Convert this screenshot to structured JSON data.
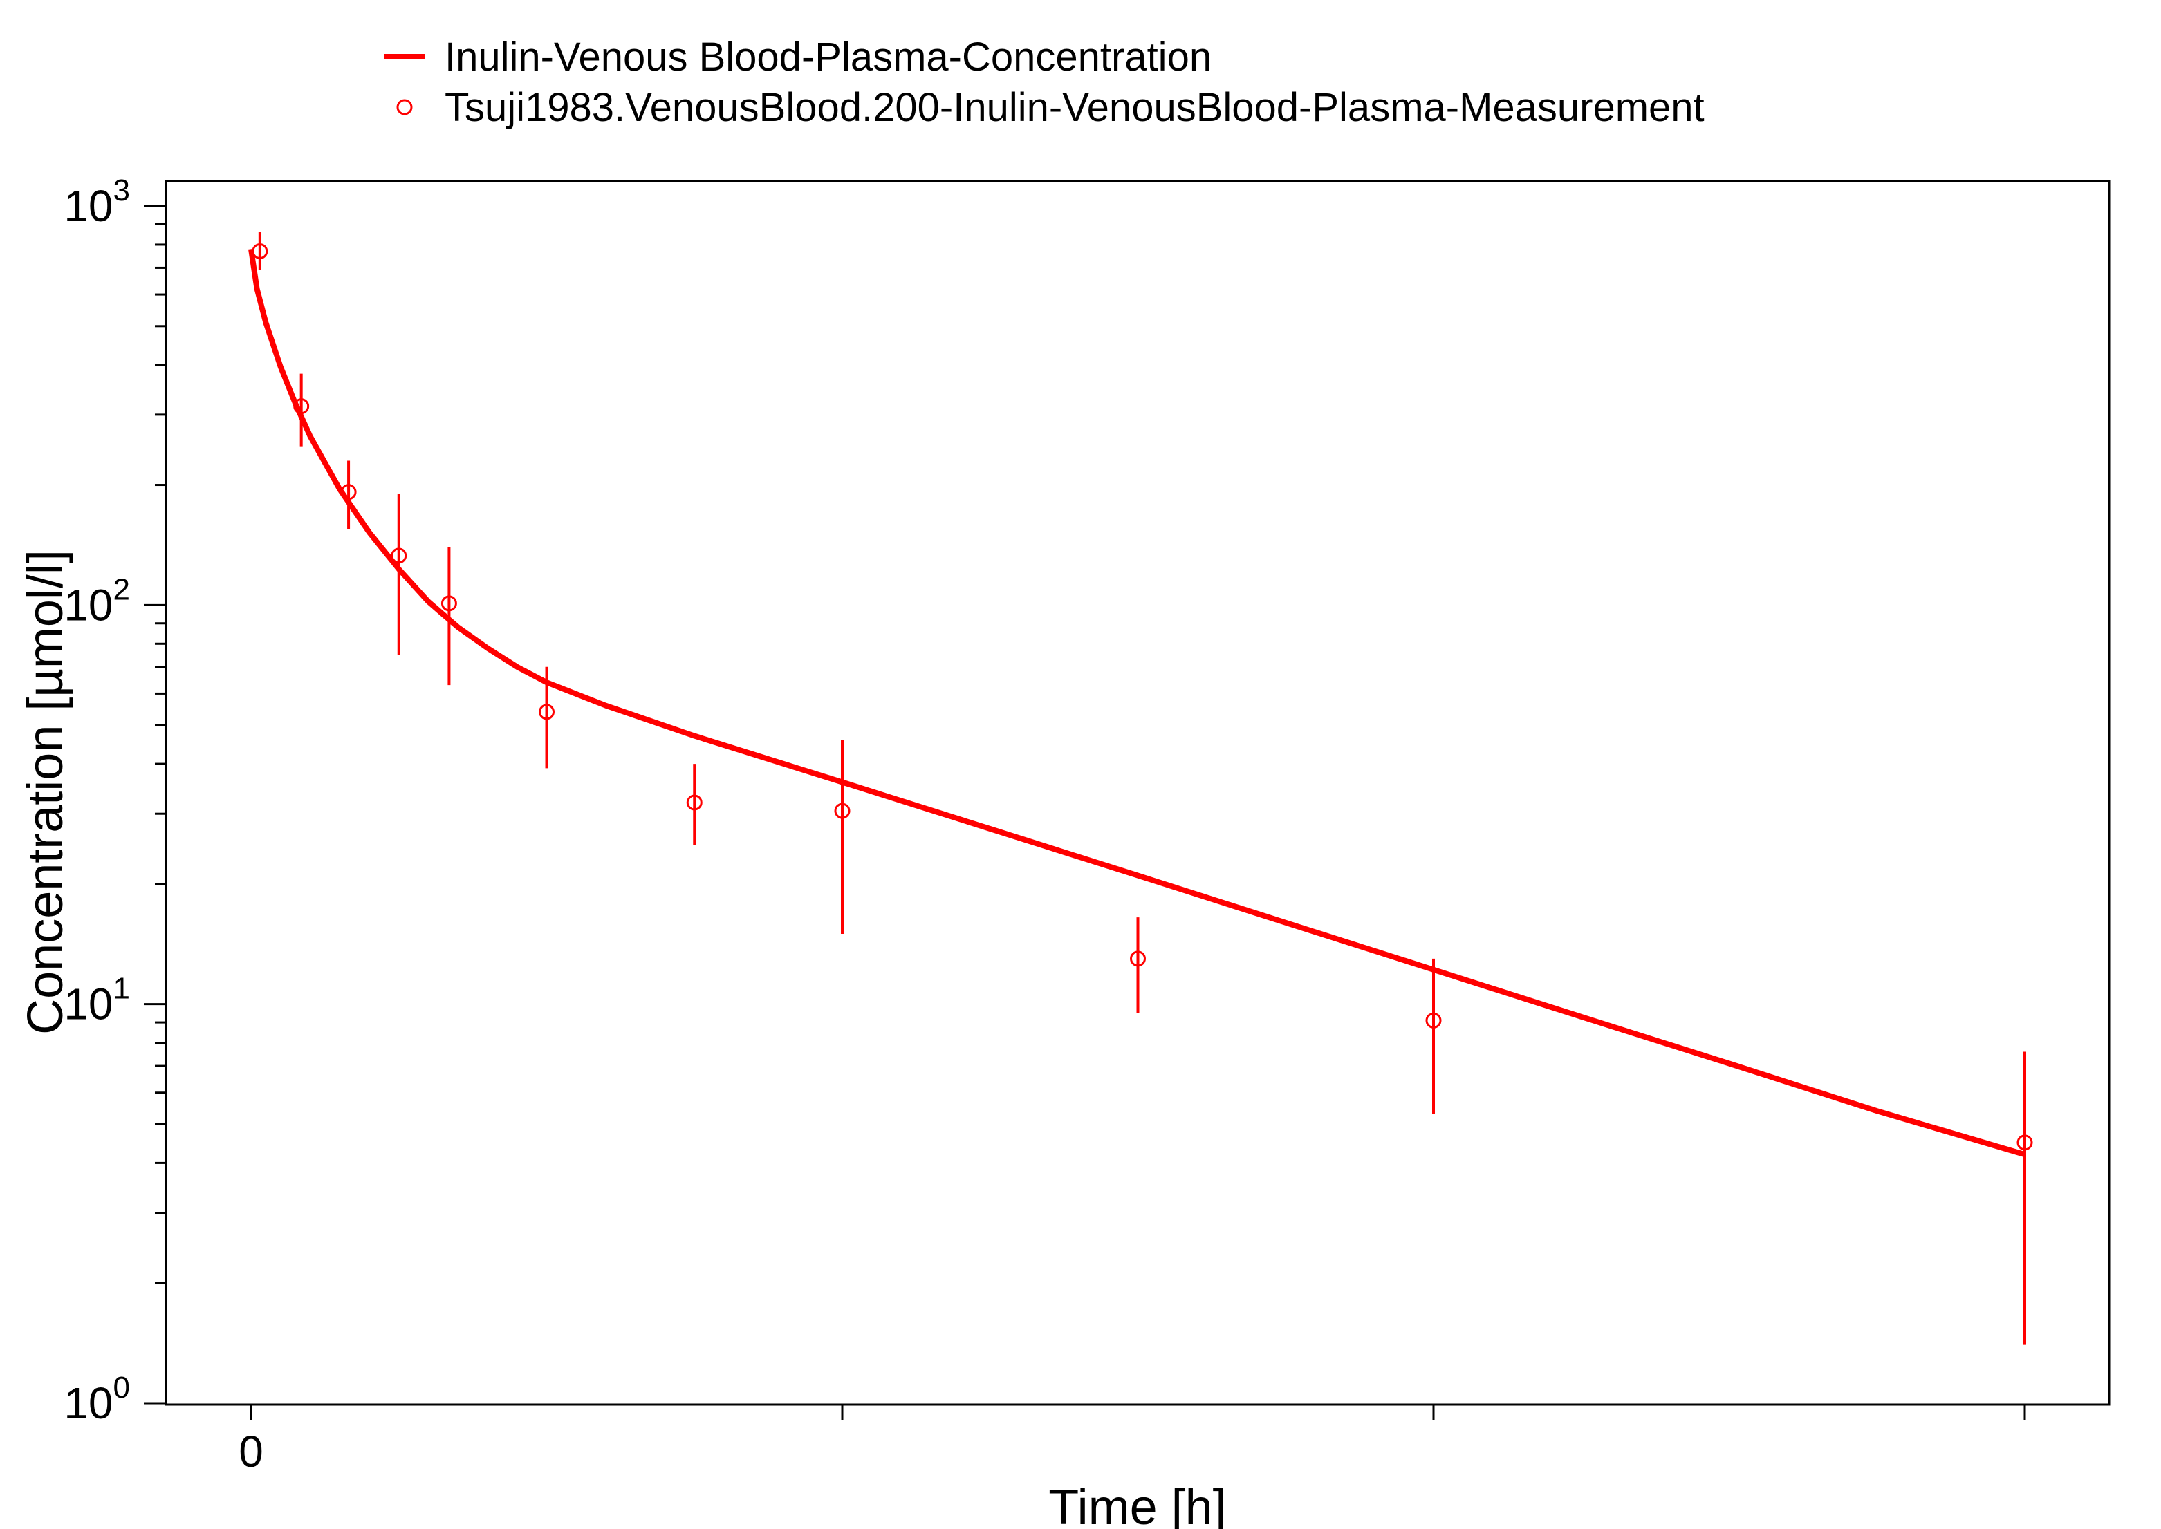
{
  "chart_data": {
    "type": "line",
    "title": "",
    "xlabel": "Time [h]",
    "ylabel": "Concentration [µmol/l]",
    "x_scale": "linear",
    "y_scale": "log",
    "xlim": [
      -0.15,
      6.4
    ],
    "ylim": [
      1,
      1000
    ],
    "x_ticks": [
      0,
      2,
      4,
      6
    ],
    "x_tick_labels": [
      "0",
      "",
      "",
      ""
    ],
    "y_ticks": [
      {
        "value": 1,
        "base": "10",
        "exp": "0"
      },
      {
        "value": 10,
        "base": "10",
        "exp": "1"
      },
      {
        "value": 100,
        "base": "10",
        "exp": "2"
      },
      {
        "value": 1000,
        "base": "10",
        "exp": "3"
      }
    ],
    "grid": false,
    "legend_position": "top",
    "series": [
      {
        "name": "Inulin-Venous Blood-Plasma-Concentration",
        "kind": "line",
        "color": "#ff0000",
        "x": [
          0.0,
          0.02,
          0.05,
          0.1,
          0.15,
          0.2,
          0.3,
          0.4,
          0.5,
          0.6,
          0.7,
          0.8,
          0.9,
          1.0,
          1.2,
          1.5,
          2.0,
          2.5,
          3.0,
          3.5,
          4.0,
          4.5,
          5.0,
          5.5,
          6.0
        ],
        "y": [
          780,
          620,
          510,
          395,
          320,
          265,
          195,
          152,
          123,
          102,
          88,
          78,
          70,
          64,
          56,
          47,
          36,
          27.5,
          21,
          16,
          12.2,
          9.3,
          7.1,
          5.4,
          4.2
        ]
      },
      {
        "name": "Tsuji1983.VenousBlood.200-Inulin-VenousBlood-Plasma-Measurement",
        "kind": "scatter",
        "color": "#ff0000",
        "x": [
          0.03,
          0.17,
          0.33,
          0.5,
          0.67,
          1.0,
          1.5,
          2.0,
          3.0,
          4.0,
          6.0
        ],
        "y": [
          770,
          315,
          192,
          133,
          101,
          54,
          32,
          30.5,
          13,
          9.1,
          4.5
        ],
        "y_err_low": [
          690,
          250,
          155,
          75,
          63,
          39,
          25,
          15,
          9.5,
          5.3,
          1.4
        ],
        "y_err_high": [
          860,
          380,
          230,
          190,
          140,
          70,
          40,
          46,
          16.5,
          13,
          7.6
        ]
      }
    ]
  }
}
